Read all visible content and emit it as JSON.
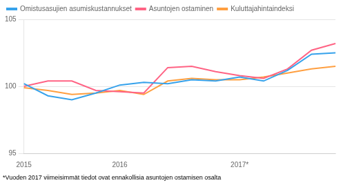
{
  "chart_data": {
    "type": "line",
    "categories": [
      "2015",
      null,
      null,
      null,
      "2016",
      null,
      null,
      null,
      null,
      "2017*",
      null,
      null,
      null,
      null
    ],
    "series": [
      {
        "name": "Omistusasujien asumiskustannukset",
        "values": [
          100.2,
          99.3,
          99.0,
          99.5,
          100.1,
          100.3,
          100.2,
          100.5,
          100.4,
          100.7,
          100.4,
          101.2,
          102.4,
          102.5
        ]
      },
      {
        "name": "Asuntojen ostaminen",
        "values": [
          100.0,
          100.4,
          100.4,
          99.7,
          99.6,
          99.5,
          101.4,
          101.5,
          101.1,
          100.8,
          100.6,
          101.3,
          102.7,
          103.2
        ]
      },
      {
        "name": "Kuluttajahintaindeksi",
        "values": [
          99.9,
          99.7,
          99.4,
          99.5,
          99.7,
          99.4,
          100.4,
          100.6,
          100.5,
          100.5,
          100.7,
          101.0,
          101.3,
          101.5
        ]
      }
    ],
    "ylim": [
      95,
      105
    ],
    "yticks": [
      95,
      100,
      105
    ],
    "grid": "y",
    "legend": "upper left",
    "annotations": [
      "*Vuoden 2017 viimeisimmät tiedot ovat ennakollisia asuntojen ostamisen osalta"
    ]
  }
}
